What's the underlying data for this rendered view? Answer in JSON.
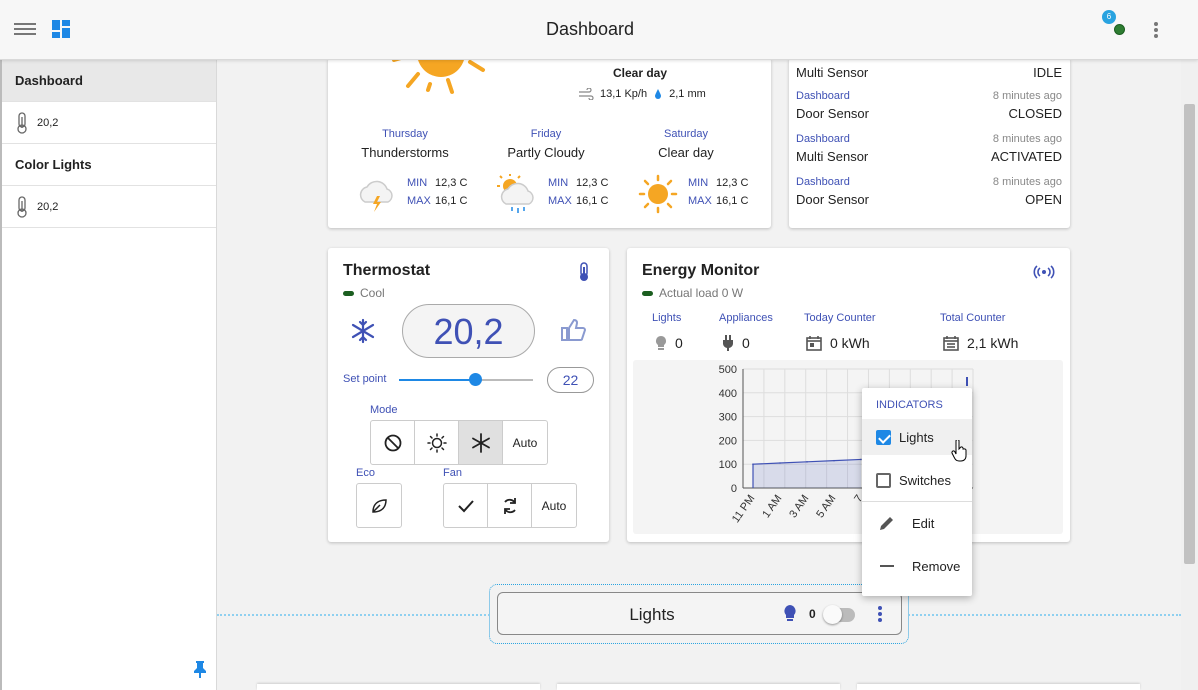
{
  "header": {
    "title": "Dashboard",
    "notifications_count": "6"
  },
  "sidebar": {
    "items": [
      {
        "label": "Dashboard"
      },
      {
        "label": "20,2"
      },
      {
        "label": "Color Lights"
      },
      {
        "label": "20,2"
      }
    ]
  },
  "weather": {
    "condition": "Clear day",
    "wind": "13,1 Kp/h",
    "rain": "2,1 mm",
    "forecast": [
      {
        "day": "Thursday",
        "condition": "Thunderstorms",
        "min_label": "MIN",
        "max_label": "MAX",
        "min": "12,3 C",
        "max": "16,1 C"
      },
      {
        "day": "Friday",
        "condition": "Partly Cloudy",
        "min_label": "MIN",
        "max_label": "MAX",
        "min": "12,3 C",
        "max": "16,1 C"
      },
      {
        "day": "Saturday",
        "condition": "Clear day",
        "min_label": "MIN",
        "max_label": "MAX",
        "min": "12,3 C",
        "max": "16,1 C"
      }
    ]
  },
  "events": {
    "first": {
      "device": "Multi Sensor",
      "state": "IDLE"
    },
    "items": [
      {
        "source": "Dashboard",
        "time": "8 minutes ago",
        "device": "Door Sensor",
        "state": "CLOSED"
      },
      {
        "source": "Dashboard",
        "time": "8 minutes ago",
        "device": "Multi Sensor",
        "state": "ACTIVATED"
      },
      {
        "source": "Dashboard",
        "time": "8 minutes ago",
        "device": "Door Sensor",
        "state": "OPEN"
      }
    ]
  },
  "thermostat": {
    "title": "Thermostat",
    "status": "Cool",
    "temperature": "20,2",
    "setpoint_label": "Set point",
    "setpoint": "22",
    "setpoint_fraction": 0.57,
    "mode_label": "Mode",
    "mode_auto": "Auto",
    "eco_label": "Eco",
    "fan_label": "Fan",
    "fan_auto": "Auto"
  },
  "energy": {
    "title": "Energy Monitor",
    "status": "Actual load 0 W",
    "stats": [
      {
        "label": "Lights",
        "value": "0"
      },
      {
        "label": "Appliances",
        "value": "0"
      },
      {
        "label": "Today Counter",
        "value": "0 kWh"
      },
      {
        "label": "Total Counter",
        "value": "2,1 kWh"
      }
    ]
  },
  "chart_data": {
    "type": "area",
    "x": [
      "11 PM",
      "1 AM",
      "3 AM",
      "5 AM",
      "7"
    ],
    "y_ticks": [
      "500",
      "400",
      "300",
      "200",
      "100",
      "0"
    ],
    "ylim": [
      0,
      500
    ],
    "series": [
      {
        "values": [
          100,
          105,
          110,
          115,
          120
        ]
      }
    ]
  },
  "popup": {
    "header": "INDICATORS",
    "lights": "Lights",
    "switches": "Switches",
    "edit": "Edit",
    "remove": "Remove"
  },
  "lights_tile": {
    "title": "Lights",
    "count": "0"
  },
  "colors": {
    "accent": "#3f51b5",
    "primary": "#1e88e5",
    "status_green": "#1b5e20"
  }
}
